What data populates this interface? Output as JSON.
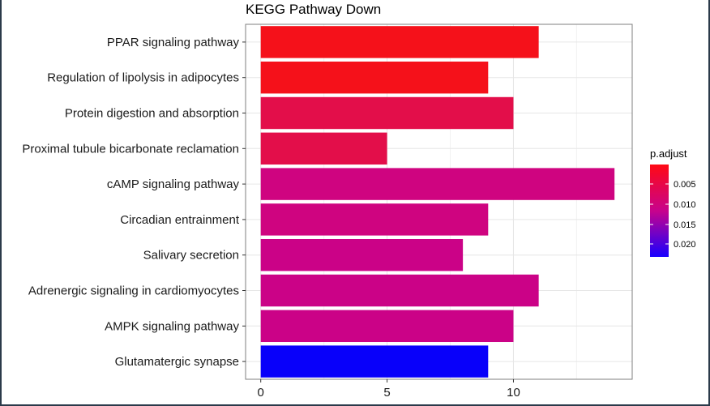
{
  "chart_data": {
    "type": "bar",
    "orientation": "horizontal",
    "title": "KEGG Pathway Down",
    "xlabel": "",
    "ylabel": "",
    "xlim": [
      -0.6,
      14.7
    ],
    "x_ticks": [
      0,
      5,
      10
    ],
    "grid": true,
    "categories": [
      "PPAR signaling pathway",
      "Regulation of lipolysis in adipocytes",
      "Protein digestion and absorption",
      "Proximal tubule bicarbonate reclamation",
      "cAMP signaling pathway",
      "Circadian entrainment",
      "Salivary secretion",
      "Adrenergic signaling in cardiomyocytes",
      "AMPK signaling pathway",
      "Glutamatergic synapse"
    ],
    "values": [
      11,
      9,
      10,
      5,
      14,
      9,
      8,
      11,
      10,
      9
    ],
    "colors": [
      "#f5111a",
      "#f5111a",
      "#e30e4a",
      "#e30e4a",
      "#cf0480",
      "#cf0480",
      "#cb0287",
      "#cb0287",
      "#cb0287",
      "#0800fa"
    ],
    "legend": {
      "title": "p.adjust",
      "placement": "right",
      "ticks": [
        "0.005",
        "0.010",
        "0.015",
        "0.020"
      ],
      "gradient_top": "#ff0a14",
      "gradient_bottom": "#1900ff"
    }
  }
}
